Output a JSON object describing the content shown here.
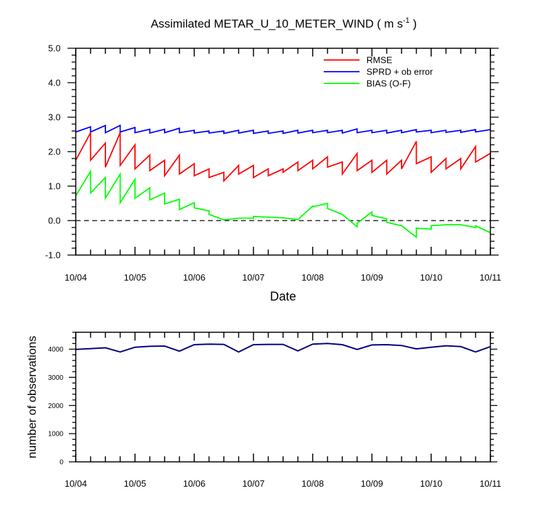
{
  "title": {
    "main": "Assimilated METAR_U_10_METER_WIND ( m s",
    "sup": "-1",
    "tail": " )"
  },
  "x_tick_labels": [
    "10/04",
    "10/05",
    "10/06",
    "10/07",
    "10/08",
    "10/09",
    "10/10",
    "10/11"
  ],
  "colors": {
    "rmse": "#ff0000",
    "sprd": "#0000ff",
    "bias": "#00ff00",
    "nobs": "#000080"
  },
  "chart_data": [
    {
      "type": "line",
      "xlabel": "Date",
      "ylabel": "",
      "x_unit": "days from 10/04 00Z",
      "xlim": [
        "10/04",
        "10/11"
      ],
      "ylim": [
        -1.0,
        5.0
      ],
      "y_ticks": [
        -1.0,
        0.0,
        1.0,
        2.0,
        3.0,
        4.0,
        5.0
      ],
      "y_tick_labels": [
        "-1.0",
        "0.0",
        "1.0",
        "2.0",
        "3.0",
        "4.0",
        "5.0"
      ],
      "reference_line": {
        "y": 0.0,
        "style": "dashed"
      },
      "legend": {
        "position": "top-right",
        "entries": [
          "RMSE",
          "SPRD + ob error",
          "BIAS (O-F)"
        ]
      },
      "series": [
        {
          "name": "RMSE",
          "color": "#ff0000",
          "points": [
            [
              0,
              1.75
            ],
            [
              0.25,
              2.55
            ],
            [
              0.25,
              1.75
            ],
            [
              0.5,
              2.25
            ],
            [
              0.5,
              1.55
            ],
            [
              0.75,
              2.55
            ],
            [
              0.75,
              1.6
            ],
            [
              1.0,
              2.2
            ],
            [
              1.0,
              1.5
            ],
            [
              1.25,
              1.9
            ],
            [
              1.25,
              1.45
            ],
            [
              1.5,
              1.75
            ],
            [
              1.5,
              1.3
            ],
            [
              1.75,
              1.9
            ],
            [
              1.75,
              1.35
            ],
            [
              2.0,
              1.65
            ],
            [
              2.0,
              1.3
            ],
            [
              2.25,
              1.5
            ],
            [
              2.25,
              1.25
            ],
            [
              2.5,
              1.4
            ],
            [
              2.5,
              1.15
            ],
            [
              2.75,
              1.6
            ],
            [
              2.75,
              1.35
            ],
            [
              3.0,
              1.6
            ],
            [
              3.0,
              1.25
            ],
            [
              3.25,
              1.5
            ],
            [
              3.25,
              1.3
            ],
            [
              3.5,
              1.5
            ],
            [
              3.5,
              1.4
            ],
            [
              3.75,
              1.7
            ],
            [
              3.75,
              1.45
            ],
            [
              4.0,
              1.75
            ],
            [
              4.0,
              1.5
            ],
            [
              4.25,
              1.85
            ],
            [
              4.25,
              1.55
            ],
            [
              4.5,
              1.7
            ],
            [
              4.5,
              1.35
            ],
            [
              4.75,
              1.95
            ],
            [
              4.75,
              1.45
            ],
            [
              5.0,
              1.75
            ],
            [
              5.0,
              1.4
            ],
            [
              5.25,
              1.75
            ],
            [
              5.25,
              1.35
            ],
            [
              5.5,
              1.75
            ],
            [
              5.5,
              1.5
            ],
            [
              5.75,
              2.3
            ],
            [
              5.75,
              1.65
            ],
            [
              6.0,
              1.85
            ],
            [
              6.0,
              1.4
            ],
            [
              6.25,
              1.8
            ],
            [
              6.25,
              1.5
            ],
            [
              6.5,
              1.8
            ],
            [
              6.5,
              1.5
            ],
            [
              6.75,
              2.15
            ],
            [
              6.75,
              1.7
            ],
            [
              7.0,
              1.95
            ],
            [
              7.0,
              1.5
            ]
          ]
        },
        {
          "name": "SPRD + ob error",
          "color": "#0000ff",
          "points": [
            [
              0,
              2.57
            ],
            [
              0.25,
              2.72
            ],
            [
              0.25,
              2.57
            ],
            [
              0.5,
              2.76
            ],
            [
              0.5,
              2.55
            ],
            [
              0.75,
              2.76
            ],
            [
              0.75,
              2.57
            ],
            [
              1.0,
              2.7
            ],
            [
              1.0,
              2.55
            ],
            [
              1.25,
              2.65
            ],
            [
              1.25,
              2.54
            ],
            [
              1.5,
              2.65
            ],
            [
              1.5,
              2.55
            ],
            [
              1.75,
              2.68
            ],
            [
              1.75,
              2.55
            ],
            [
              2.0,
              2.62
            ],
            [
              2.0,
              2.54
            ],
            [
              2.25,
              2.6
            ],
            [
              2.25,
              2.54
            ],
            [
              2.5,
              2.6
            ],
            [
              2.5,
              2.53
            ],
            [
              2.75,
              2.62
            ],
            [
              2.75,
              2.54
            ],
            [
              3.0,
              2.62
            ],
            [
              3.0,
              2.53
            ],
            [
              3.25,
              2.6
            ],
            [
              3.25,
              2.53
            ],
            [
              3.5,
              2.6
            ],
            [
              3.5,
              2.53
            ],
            [
              3.75,
              2.62
            ],
            [
              3.75,
              2.54
            ],
            [
              4.0,
              2.62
            ],
            [
              4.0,
              2.55
            ],
            [
              4.25,
              2.62
            ],
            [
              4.25,
              2.55
            ],
            [
              4.5,
              2.62
            ],
            [
              4.5,
              2.54
            ],
            [
              4.75,
              2.66
            ],
            [
              4.75,
              2.55
            ],
            [
              5.0,
              2.62
            ],
            [
              5.0,
              2.55
            ],
            [
              5.25,
              2.62
            ],
            [
              5.25,
              2.54
            ],
            [
              5.5,
              2.62
            ],
            [
              5.5,
              2.55
            ],
            [
              5.75,
              2.64
            ],
            [
              5.75,
              2.57
            ],
            [
              6.0,
              2.62
            ],
            [
              6.0,
              2.55
            ],
            [
              6.25,
              2.62
            ],
            [
              6.25,
              2.56
            ],
            [
              6.5,
              2.62
            ],
            [
              6.5,
              2.56
            ],
            [
              6.75,
              2.64
            ],
            [
              6.75,
              2.57
            ],
            [
              7.0,
              2.64
            ]
          ]
        },
        {
          "name": "BIAS (O-F)",
          "color": "#00ff00",
          "points": [
            [
              0,
              0.72
            ],
            [
              0.25,
              1.43
            ],
            [
              0.25,
              0.8
            ],
            [
              0.5,
              1.25
            ],
            [
              0.5,
              0.65
            ],
            [
              0.75,
              1.35
            ],
            [
              0.75,
              0.52
            ],
            [
              1.0,
              1.2
            ],
            [
              1.0,
              0.65
            ],
            [
              1.25,
              0.95
            ],
            [
              1.25,
              0.6
            ],
            [
              1.5,
              0.8
            ],
            [
              1.5,
              0.48
            ],
            [
              1.75,
              0.62
            ],
            [
              1.75,
              0.32
            ],
            [
              2.0,
              0.52
            ],
            [
              2.0,
              0.37
            ],
            [
              2.25,
              0.28
            ],
            [
              2.25,
              0.18
            ],
            [
              2.5,
              0.02
            ],
            [
              2.75,
              0.07
            ],
            [
              3.0,
              0.07
            ],
            [
              3.0,
              0.12
            ],
            [
              3.25,
              0.1
            ],
            [
              3.5,
              0.08
            ],
            [
              3.75,
              0.03
            ],
            [
              4.0,
              0.42
            ],
            [
              4.0,
              0.4
            ],
            [
              4.25,
              0.5
            ],
            [
              4.25,
              0.35
            ],
            [
              4.5,
              0.18
            ],
            [
              4.75,
              -0.18
            ],
            [
              4.75,
              -0.08
            ],
            [
              5.0,
              0.25
            ],
            [
              5.0,
              0.15
            ],
            [
              5.25,
              0.05
            ],
            [
              5.25,
              -0.05
            ],
            [
              5.5,
              -0.15
            ],
            [
              5.75,
              -0.48
            ],
            [
              5.75,
              -0.22
            ],
            [
              6.0,
              -0.25
            ],
            [
              6.0,
              -0.15
            ],
            [
              6.25,
              -0.12
            ],
            [
              6.5,
              -0.12
            ],
            [
              6.75,
              -0.2
            ],
            [
              6.75,
              -0.15
            ],
            [
              7.0,
              -0.35
            ]
          ]
        }
      ]
    },
    {
      "type": "line",
      "xlabel": "",
      "ylabel": "number of observations",
      "x_unit": "days from 10/04 00Z",
      "xlim": [
        "10/04",
        "10/11"
      ],
      "ylim": [
        0,
        4600
      ],
      "y_ticks": [
        0,
        1000,
        2000,
        3000,
        4000
      ],
      "y_tick_labels": [
        "0",
        "1000",
        "2000",
        "3000",
        "4000"
      ],
      "series": [
        {
          "name": "",
          "color": "#000080",
          "points": [
            [
              0,
              3990
            ],
            [
              0.25,
              4020
            ],
            [
              0.5,
              4050
            ],
            [
              0.75,
              3900
            ],
            [
              1.0,
              4070
            ],
            [
              1.25,
              4100
            ],
            [
              1.5,
              4110
            ],
            [
              1.75,
              3930
            ],
            [
              2.0,
              4160
            ],
            [
              2.25,
              4180
            ],
            [
              2.5,
              4170
            ],
            [
              2.75,
              3900
            ],
            [
              3.0,
              4160
            ],
            [
              3.25,
              4170
            ],
            [
              3.5,
              4170
            ],
            [
              3.75,
              3940
            ],
            [
              4.0,
              4180
            ],
            [
              4.25,
              4200
            ],
            [
              4.5,
              4160
            ],
            [
              4.75,
              3990
            ],
            [
              5.0,
              4150
            ],
            [
              5.25,
              4160
            ],
            [
              5.5,
              4130
            ],
            [
              5.75,
              4010
            ],
            [
              6.0,
              4070
            ],
            [
              6.25,
              4120
            ],
            [
              6.5,
              4090
            ],
            [
              6.75,
              3900
            ],
            [
              7.0,
              4090
            ]
          ]
        }
      ]
    }
  ]
}
